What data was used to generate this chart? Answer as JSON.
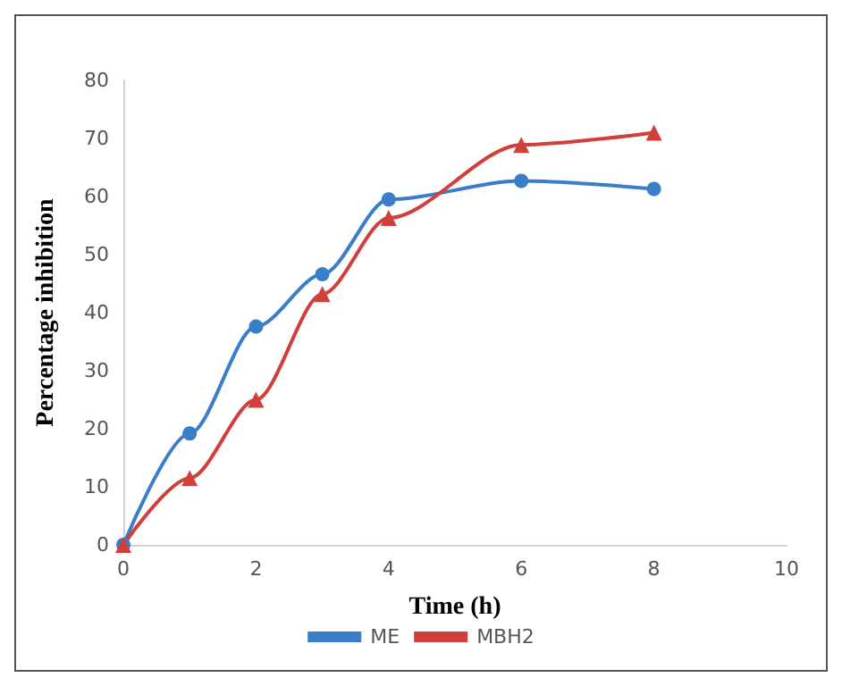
{
  "chart_data": {
    "type": "line",
    "xlabel": "Time (h)",
    "ylabel": "Percentage inhibition",
    "x": [
      0,
      1,
      2,
      3,
      4,
      6,
      8
    ],
    "series": [
      {
        "name": "ME",
        "color": "#3a7dc9",
        "marker": "circle",
        "values": [
          0,
          19.2,
          37.6,
          46.6,
          59.5,
          62.7,
          61.3
        ]
      },
      {
        "name": "MBH2",
        "color": "#d0403a",
        "marker": "triangle",
        "values": [
          0,
          11.5,
          25,
          43.2,
          56.3,
          68.9,
          71
        ]
      }
    ],
    "xlim": [
      0,
      10
    ],
    "xticks": [
      0,
      2,
      4,
      6,
      8,
      10
    ],
    "ylim": [
      0,
      80
    ],
    "yticks": [
      0,
      10,
      20,
      30,
      40,
      50,
      60,
      70,
      80
    ],
    "grid": false,
    "legend": "bottom"
  }
}
